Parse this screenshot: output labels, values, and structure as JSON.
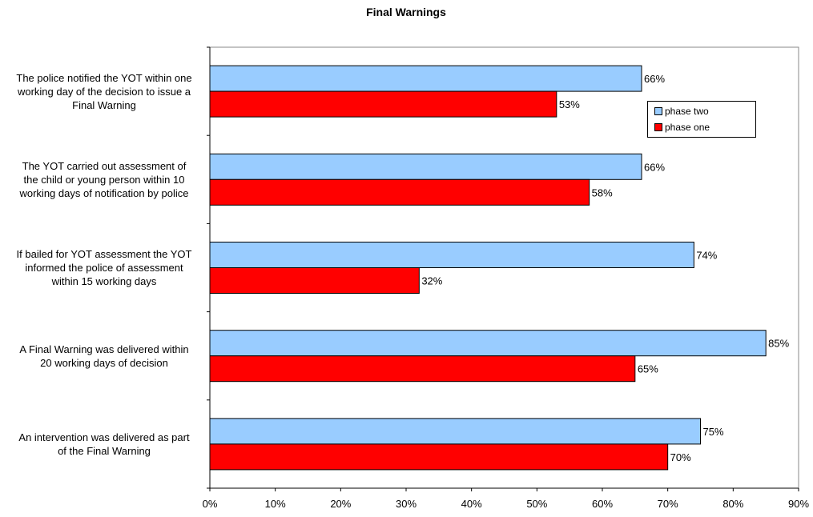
{
  "chart_data": {
    "type": "bar",
    "orientation": "horizontal",
    "title": "Final Warnings",
    "categories": [
      "The police notified the YOT within one working day of the decision to issue a Final Warning",
      "The YOT carried out assessment of the child or young person within 10 working days of notification by police",
      "If bailed for YOT assessment the YOT informed the police of assessment within 15 working days",
      "A Final Warning was  delivered within 20 working days of decision",
      "An intervention was delivered as part of the Final Warning"
    ],
    "category_lines": [
      [
        "The police notified the YOT within one",
        "working day of the decision to issue a",
        "Final Warning"
      ],
      [
        "The YOT carried out assessment of",
        "the child or young person within 10",
        "working days of notification by police"
      ],
      [
        "If bailed for YOT assessment the YOT",
        "informed the police of assessment",
        "within 15 working days"
      ],
      [
        "A Final Warning was  delivered within",
        "20 working days of decision"
      ],
      [
        "An intervention was delivered as part",
        "of the Final Warning"
      ]
    ],
    "series": [
      {
        "name": "phase two",
        "color": "#99CCFF",
        "values": [
          66,
          66,
          74,
          85,
          75
        ],
        "labels": [
          "66%",
          "66%",
          "74%",
          "85%",
          "75%"
        ]
      },
      {
        "name": "phase one",
        "color": "#FF0000",
        "values": [
          53,
          58,
          32,
          65,
          70
        ],
        "labels": [
          "53%",
          "58%",
          "32%",
          "65%",
          "70%"
        ]
      }
    ],
    "xlim": [
      0,
      90
    ],
    "xticks": [
      "0%",
      "10%",
      "20%",
      "30%",
      "40%",
      "50%",
      "60%",
      "70%",
      "80%",
      "90%"
    ],
    "xlabel": "",
    "ylabel": "",
    "grid": false,
    "legend_position": "top-right"
  }
}
